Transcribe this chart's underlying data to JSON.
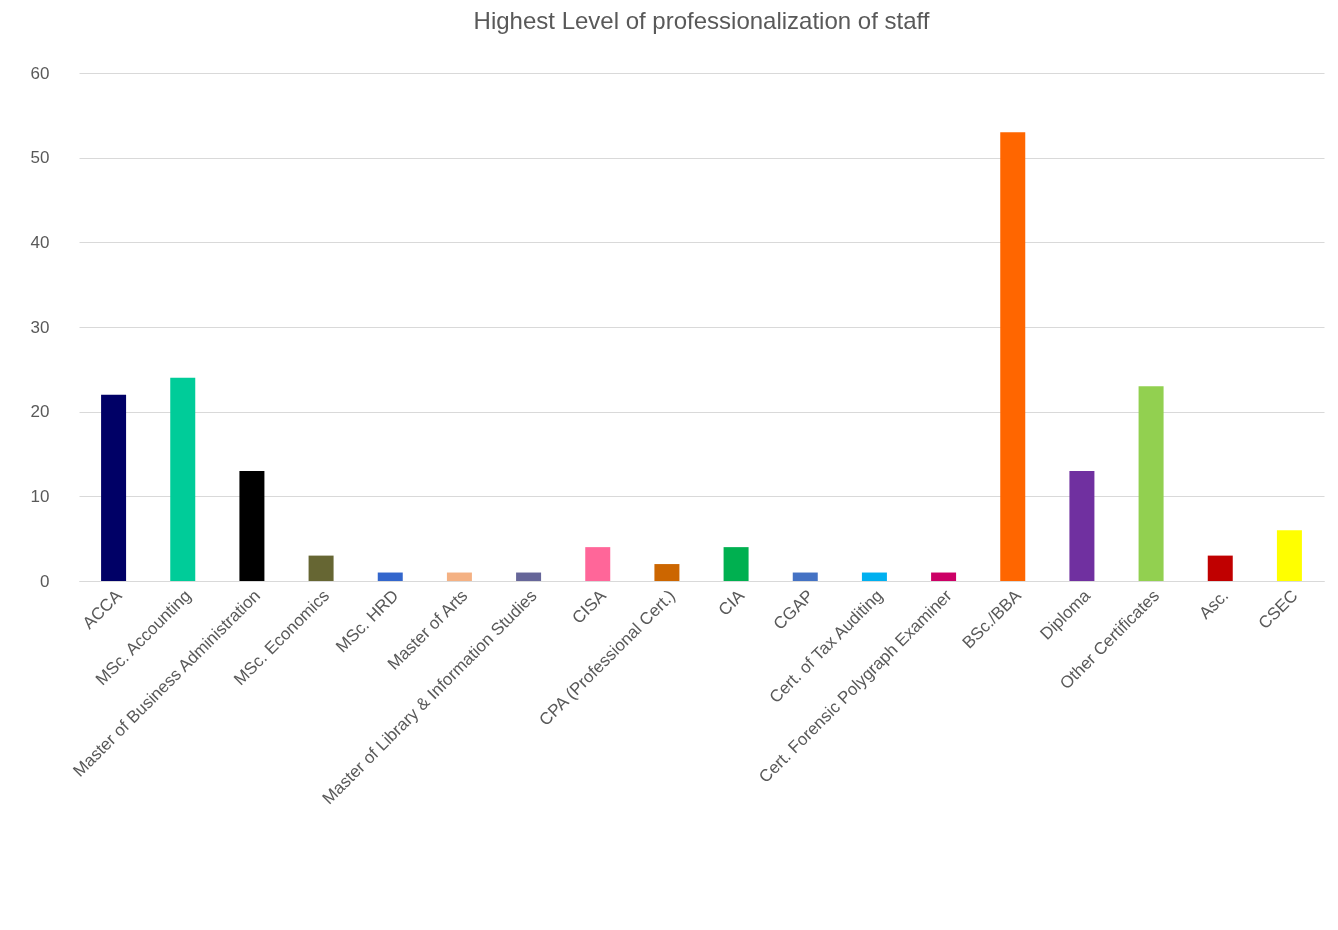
{
  "chart_data": {
    "type": "bar",
    "title": "Highest Level of professionalization of staff",
    "categories": [
      "ACCA",
      "MSc. Accounting",
      "Master of Business Administration",
      "MSc. Economics",
      "MSc. HRD",
      "Master of Arts",
      "Master of Library & Information Studies",
      "CISA",
      "CPA (Professional Cert.)",
      "CIA",
      "CGAP",
      "Cert. of Tax Auditing",
      "Cert. Forensic Polygraph Examiner",
      "BSc./BBA",
      "Diploma",
      "Other Certificates",
      "Asc.",
      "CSEC"
    ],
    "values": [
      22,
      24,
      13,
      3,
      1,
      1,
      1,
      4,
      2,
      4,
      1,
      1,
      1,
      53,
      13,
      23,
      3,
      6
    ],
    "colors": [
      "#000066",
      "#00cc99",
      "#000000",
      "#666633",
      "#3366cc",
      "#f4b183",
      "#666699",
      "#ff6699",
      "#cc6600",
      "#00b050",
      "#4472c4",
      "#00b0f0",
      "#cc0066",
      "#ff6600",
      "#7030a0",
      "#92d050",
      "#c00000",
      "#ffff00"
    ],
    "ylim": [
      0,
      60
    ],
    "yticks": [
      0,
      10,
      20,
      30,
      40,
      50,
      60
    ],
    "grid": "y"
  }
}
